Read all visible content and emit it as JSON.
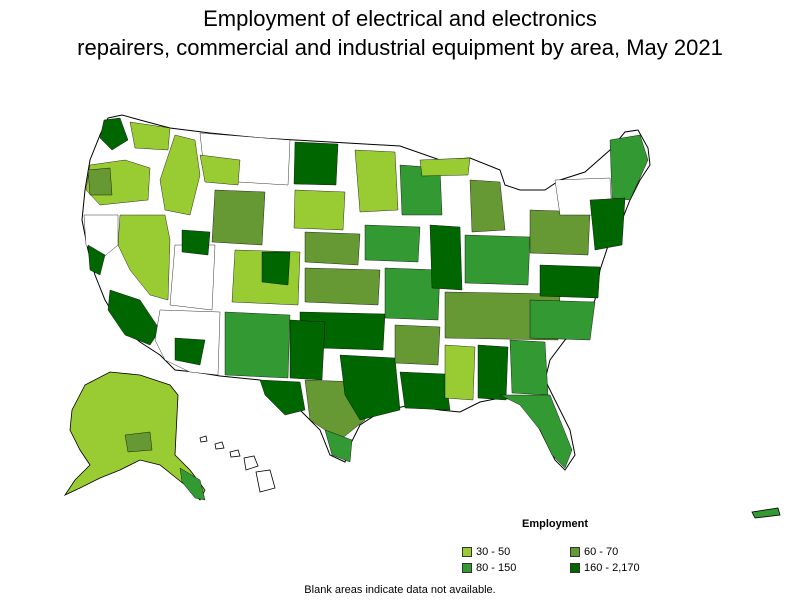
{
  "title_line1": "Employment of electrical and electronics",
  "title_line2": "repairers, commercial and industrial equipment by area, May 2021",
  "legend": {
    "title": "Employment",
    "items": [
      {
        "label": "30 - 50",
        "color": "#99cc33"
      },
      {
        "label": "60 - 70",
        "color": "#669933"
      },
      {
        "label": "80 - 150",
        "color": "#339933"
      },
      {
        "label": "160 - 2,170",
        "color": "#006600"
      }
    ]
  },
  "note": "Blank areas indicate data not available.",
  "colors": {
    "outline": "#000000",
    "blank": "#ffffff"
  }
}
